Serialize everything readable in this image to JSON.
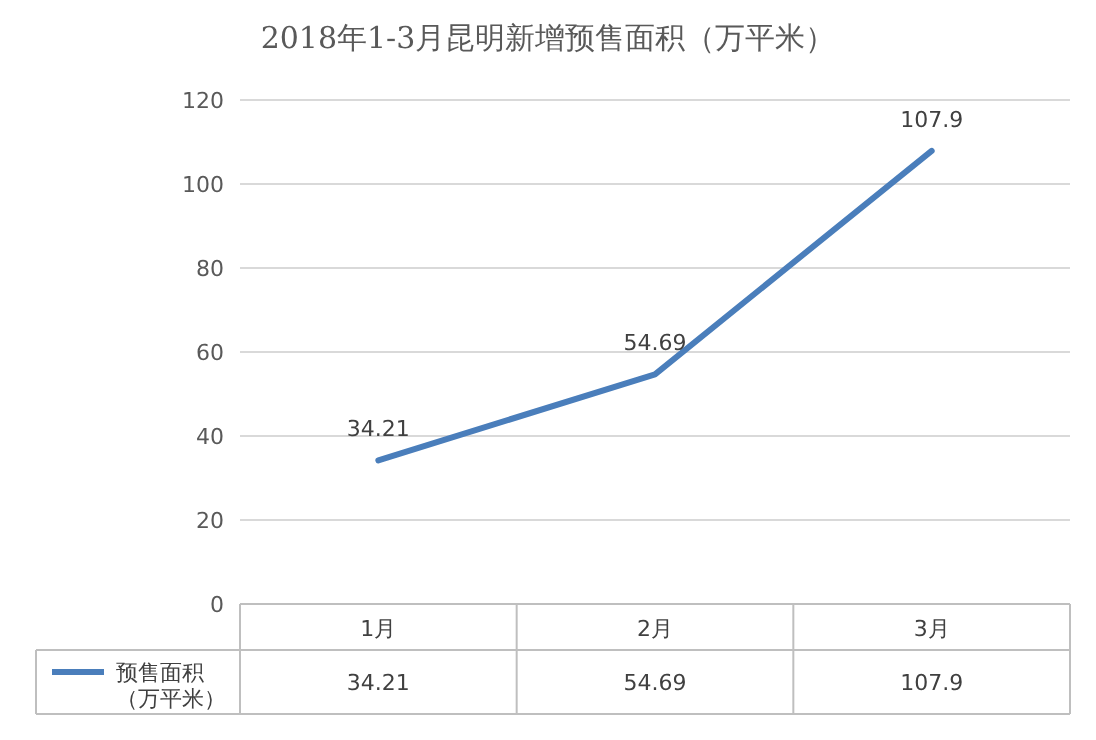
{
  "chart_data": {
    "type": "line",
    "title": "2018年1-3月昆明新增预售面积（万平米）",
    "categories": [
      "1月",
      "2月",
      "3月"
    ],
    "series": [
      {
        "name": "预售面积（万平米）",
        "color": "#4a7ebb",
        "values": [
          34.21,
          54.69,
          107.9
        ],
        "value_labels": [
          "34.21",
          "54.69",
          "107.9"
        ]
      }
    ],
    "ylim": [
      0,
      120
    ],
    "yticks": [
      0,
      20,
      40,
      60,
      80,
      100,
      120
    ],
    "grid": "y",
    "annotations": [
      "34.21",
      "54.69",
      "107.9"
    ],
    "legend": "bottom",
    "marker": "none",
    "line_style": "solid"
  }
}
